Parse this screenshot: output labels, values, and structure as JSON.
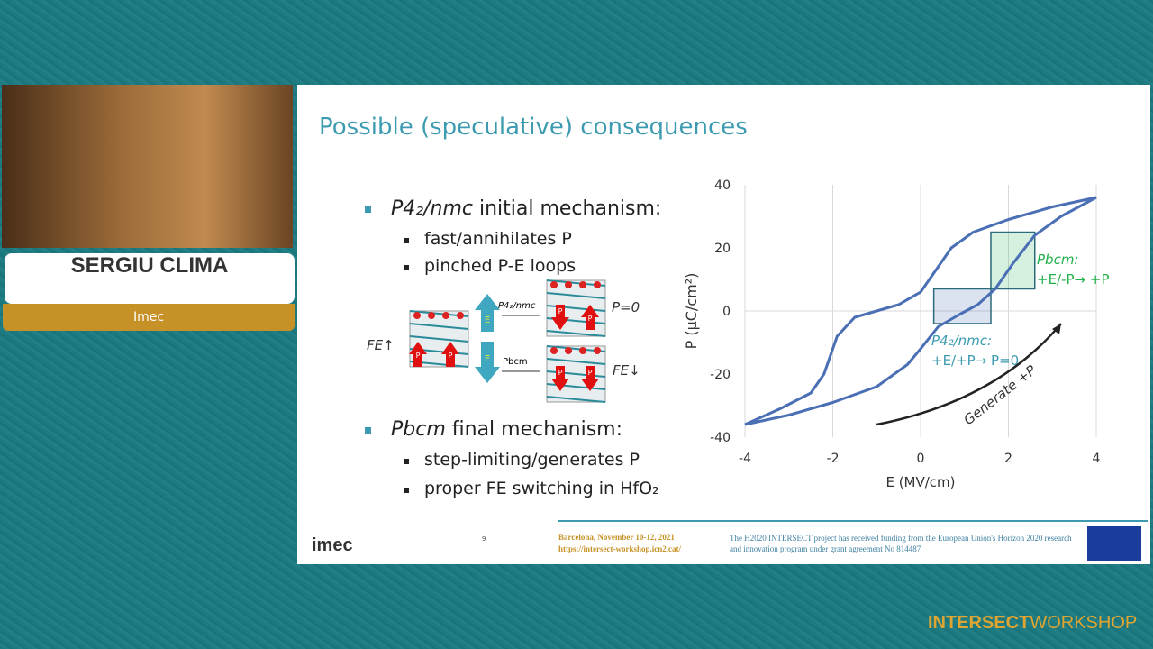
{
  "speaker": {
    "name": "SERGIU CLIMA",
    "affiliation": "Imec"
  },
  "slide": {
    "title": "Possible (speculative) consequences",
    "bullets": [
      {
        "term": "P4₂/nmc",
        "text": "initial mechanism:",
        "sub": [
          "fast/annihilates P",
          "pinched P-E loops"
        ]
      },
      {
        "term": "Pbcm",
        "text": "final mechanism:",
        "sub": [
          "step-limiting/generates P",
          "proper FE switching in HfO₂"
        ]
      }
    ],
    "diagram": {
      "left": "FE↑",
      "top_arrow": "P4₂/nmc",
      "bottom_arrow": "Pbcm",
      "top_result": "P=0",
      "bottom_result": "FE↓",
      "field": "E",
      "polarization": "P"
    },
    "chart": {
      "type": "line",
      "xlabel": "E (MV/cm)",
      "ylabel": "P (μC/cm²)",
      "xlim": [
        -4,
        4
      ],
      "ylim": [
        -40,
        40
      ],
      "xticks": [
        -4,
        -2,
        0,
        2,
        4
      ],
      "yticks": [
        -40,
        -20,
        0,
        20,
        40
      ],
      "grid": true,
      "series": [
        {
          "color": "#4a6fb5",
          "x": [
            -4,
            -3.2,
            -2.5,
            -2.2,
            -1.9,
            -1.5,
            -1,
            -0.5,
            0,
            0.3,
            0.7,
            1.2,
            2,
            3,
            4
          ],
          "y": [
            -36,
            -31,
            -26,
            -20,
            -8,
            -2,
            0,
            2,
            6,
            12,
            20,
            25,
            29,
            33,
            36
          ]
        },
        {
          "color": "#4a6fb5",
          "x": [
            -4,
            -3,
            -2,
            -1,
            -0.3,
            0,
            0.4,
            0.9,
            1.3,
            1.7,
            2.1,
            2.6,
            3.2,
            4
          ],
          "y": [
            -36,
            -33,
            -29,
            -24,
            -17,
            -12,
            -5,
            -1,
            2,
            7,
            15,
            24,
            30,
            36
          ]
        }
      ],
      "regions": [
        {
          "color": "#4a6fb5",
          "x": [
            0.3,
            1.6
          ],
          "y": [
            -4,
            7
          ]
        },
        {
          "color": "#2eb35a",
          "x": [
            1.6,
            2.6
          ],
          "y": [
            7,
            25
          ]
        }
      ],
      "arrow": {
        "x": [
          -1,
          3.2
        ],
        "y": [
          -36,
          -4
        ],
        "label": "Generate +P"
      },
      "annotations": [
        {
          "color": "#3c9bb0",
          "lines": [
            "P4₂/nmc:",
            "+E/+P→ P=0"
          ]
        },
        {
          "color": "#22b04a",
          "lines": [
            "Pbcm:",
            "+E/-P→ +P"
          ]
        }
      ]
    },
    "footer": {
      "logo": "imec",
      "page": "9",
      "event": "Barcelona, November 10-12, 2021",
      "url": "https://intersect-workshop.icn2.cat/",
      "funding": "The H2020 INTERSECT project has received funding from the European Union's Horizon 2020 research and innovation program under grant agreement No 814487"
    }
  },
  "branding": {
    "word1": "INTERSECT",
    "word2": "WORKSHOP"
  }
}
